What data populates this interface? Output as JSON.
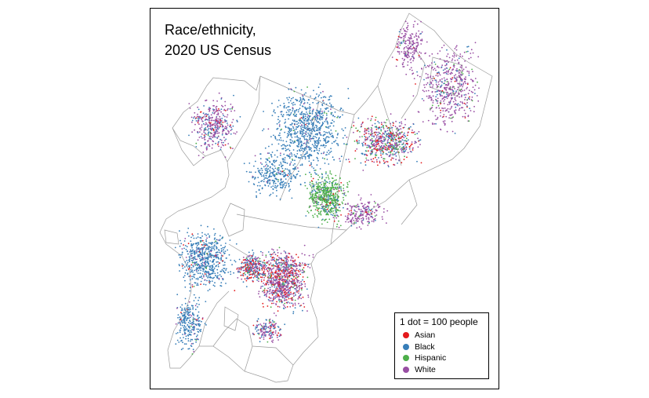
{
  "title_lines": [
    "Race/ethnicity,",
    "2020 US Census"
  ],
  "legend": {
    "title": "1 dot = 100 people",
    "items": [
      {
        "label": "Asian",
        "color": "#e41a1c"
      },
      {
        "label": "Black",
        "color": "#377eb8"
      },
      {
        "label": "Hispanic",
        "color": "#4daf4a"
      },
      {
        "label": "White",
        "color": "#984ea3"
      }
    ]
  },
  "colors": {
    "boundary": "#9a9a9a",
    "frame": "#000000",
    "background": "#ffffff"
  }
}
